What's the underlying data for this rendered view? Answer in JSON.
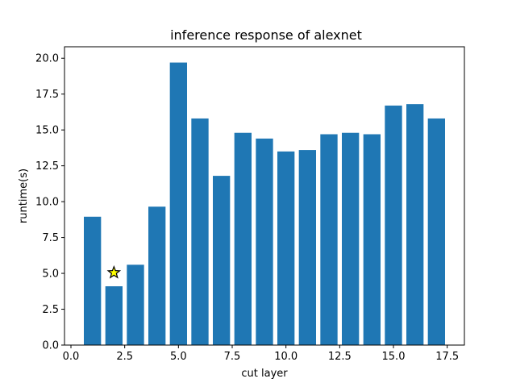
{
  "chart_data": {
    "type": "bar",
    "title": "inference response of alexnet",
    "xlabel": "cut layer",
    "ylabel": "runtime(s)",
    "x": [
      1,
      2,
      3,
      4,
      5,
      6,
      7,
      8,
      9,
      10,
      11,
      12,
      13,
      14,
      15,
      16,
      17
    ],
    "values": [
      8.95,
      4.1,
      5.6,
      9.65,
      19.7,
      15.8,
      11.8,
      14.8,
      14.4,
      13.5,
      13.6,
      14.7,
      14.8,
      14.7,
      16.7,
      16.8,
      15.8
    ],
    "xlim": [
      -0.3,
      18.3
    ],
    "ylim": [
      0,
      20.8
    ],
    "xticks": [
      0.0,
      2.5,
      5.0,
      7.5,
      10.0,
      12.5,
      15.0,
      17.5
    ],
    "xtick_labels": [
      "0.0",
      "2.5",
      "5.0",
      "7.5",
      "10.0",
      "12.5",
      "15.0",
      "17.5"
    ],
    "yticks": [
      0.0,
      2.5,
      5.0,
      7.5,
      10.0,
      12.5,
      15.0,
      17.5,
      20.0
    ],
    "ytick_labels": [
      "0.0",
      "2.5",
      "5.0",
      "7.5",
      "10.0",
      "12.5",
      "15.0",
      "17.5",
      "20.0"
    ],
    "grid": false,
    "bar_color": "#1f77b4",
    "marker": {
      "shape": "star",
      "x": 2,
      "y": 5.05,
      "fill": "#ffff00",
      "stroke": "#000000"
    }
  }
}
